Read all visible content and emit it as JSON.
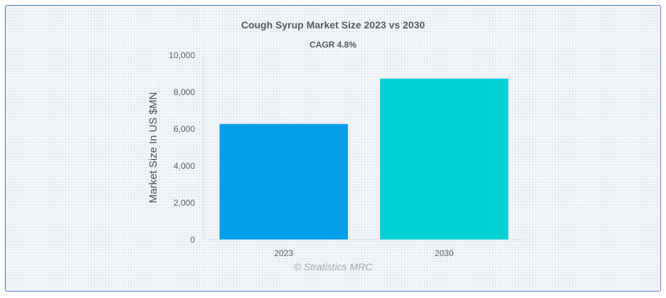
{
  "chart_data": {
    "type": "bar",
    "title": "Cough Syrup Market Size 2023 vs 2030",
    "subtitle": "CAGR 4.8%",
    "xlabel": "",
    "ylabel": "Market Size In US $MN",
    "categories": [
      "2023",
      "2030"
    ],
    "values": [
      6280,
      8740
    ],
    "colors": [
      "#039fe8",
      "#00d2d3"
    ],
    "ylim": [
      0,
      10000
    ],
    "yticks": [
      0,
      2000,
      4000,
      6000,
      8000,
      10000
    ],
    "ytick_labels": [
      "0",
      "2,000",
      "4,000",
      "6,000",
      "8,000",
      "10,000"
    ],
    "grid": false,
    "legend": "none"
  },
  "credit": "© Stratistics MRC"
}
